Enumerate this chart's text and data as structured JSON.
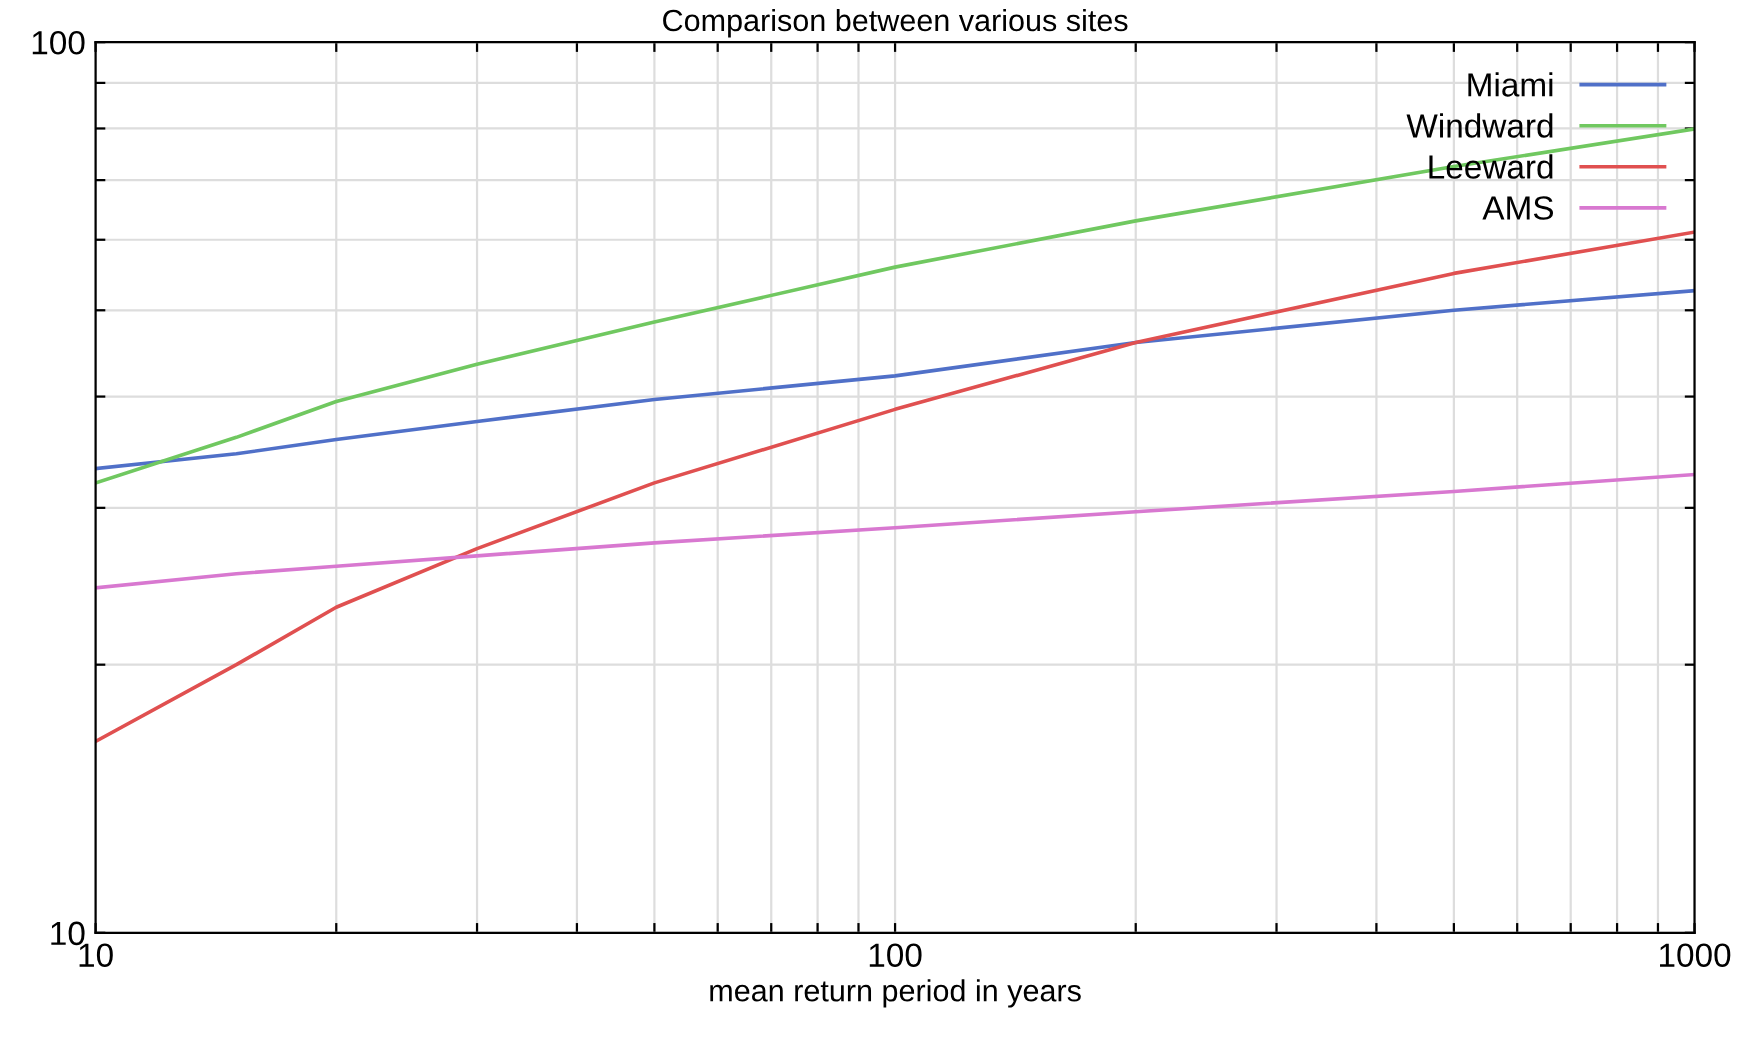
{
  "chart_data": {
    "type": "line",
    "title": "Comparison between various sites",
    "xlabel": "mean return period in years",
    "log": "xy",
    "x": [
      10,
      15,
      20,
      30,
      50,
      100,
      200,
      500,
      1000
    ],
    "series": [
      {
        "name": "Miami",
        "color": "#5070c8",
        "values": [
          33.2,
          34.5,
          35.8,
          37.5,
          39.7,
          42.2,
          46,
          50,
          52.6
        ]
      },
      {
        "name": "Windward",
        "color": "#70c860",
        "values": [
          32,
          36,
          39.5,
          43.5,
          48.5,
          55.9,
          63,
          72.5,
          79.9
        ]
      },
      {
        "name": "Leeward",
        "color": "#e05050",
        "values": [
          16.4,
          20,
          23.2,
          27,
          32,
          38.7,
          46,
          55,
          61.2
        ]
      },
      {
        "name": "AMS",
        "color": "#d878d0",
        "values": [
          24.4,
          25.3,
          25.8,
          26.5,
          27.4,
          28.5,
          29.7,
          31.3,
          32.7
        ]
      }
    ],
    "xlim": [
      10,
      1000
    ],
    "ylim": [
      10,
      100
    ],
    "xticks": [
      10,
      {
        "value": 20,
        "label": null
      },
      {
        "value": 30,
        "label": null
      },
      {
        "value": 40,
        "label": null
      },
      {
        "value": 50,
        "label": null
      },
      {
        "value": 60,
        "label": null
      },
      {
        "value": 70,
        "label": null
      },
      {
        "value": 80,
        "label": null
      },
      {
        "value": 90,
        "label": null
      },
      100,
      {
        "value": 200,
        "label": null
      },
      {
        "value": 300,
        "label": null
      },
      {
        "value": 400,
        "label": null
      },
      {
        "value": 500,
        "label": null
      },
      {
        "value": 600,
        "label": null
      },
      {
        "value": 700,
        "label": null
      },
      {
        "value": 800,
        "label": null
      },
      {
        "value": 900,
        "label": null
      },
      1000
    ],
    "yticks": [
      10,
      {
        "value": 20,
        "label": null
      },
      {
        "value": 30,
        "label": null
      },
      {
        "value": 40,
        "label": null
      },
      {
        "value": 50,
        "label": null
      },
      {
        "value": 60,
        "label": null
      },
      {
        "value": 70,
        "label": null
      },
      {
        "value": 80,
        "label": null
      },
      {
        "value": 90,
        "label": null
      },
      100
    ],
    "grid": true,
    "legend": "top right",
    "line_style": "solid",
    "marker": "none"
  }
}
